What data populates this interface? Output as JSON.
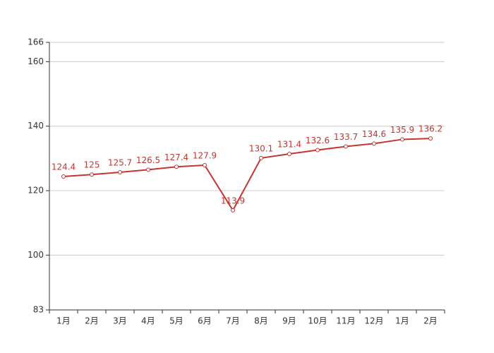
{
  "chart_data": {
    "type": "line",
    "categories": [
      "1月",
      "2月",
      "3月",
      "4月",
      "5月",
      "6月",
      "7月",
      "8月",
      "9月",
      "10月",
      "11月",
      "12月",
      "1月",
      "2月"
    ],
    "values": [
      124.4,
      125,
      125.7,
      126.5,
      127.4,
      127.9,
      113.9,
      130.1,
      131.4,
      132.6,
      133.7,
      134.6,
      135.9,
      136.2
    ],
    "color": "#c23531",
    "ylim": [
      83,
      166
    ],
    "yticks": [
      83,
      100,
      120,
      140,
      160,
      166
    ],
    "grid": true
  }
}
